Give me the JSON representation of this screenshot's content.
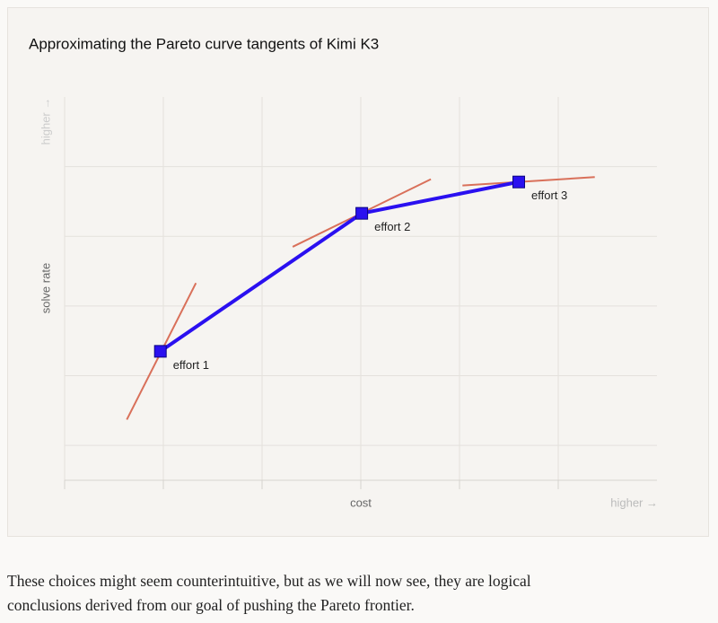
{
  "chart_data": {
    "type": "line",
    "title": "Approximating the Pareto curve tangents of Kimi K3",
    "x_label": "cost",
    "y_label": "solve rate",
    "x_annotation": "higher →",
    "y_annotation": "higher →",
    "xlim": [
      0,
      6
    ],
    "ylim": [
      0.5,
      6
    ],
    "xticks": [
      0,
      1,
      2,
      3,
      4,
      5
    ],
    "yticks": [
      1,
      2,
      3,
      4,
      5
    ],
    "grid": true,
    "series": [
      {
        "color": "#2a10f0",
        "x": [
          0.97,
          3.01,
          4.6
        ],
        "values": [
          2.35,
          4.33,
          4.78
        ],
        "point_labels": [
          "effort 1",
          "effort 2",
          "effort 3"
        ]
      }
    ],
    "tangents": [
      {
        "color": "#d9705a",
        "x": [
          0.63,
          1.33
        ],
        "values": [
          1.37,
          3.33
        ]
      },
      {
        "color": "#d9705a",
        "x": [
          2.31,
          3.71
        ],
        "values": [
          3.85,
          4.82
        ]
      },
      {
        "color": "#d9705a",
        "x": [
          4.03,
          5.37
        ],
        "values": [
          4.73,
          4.85
        ]
      }
    ]
  },
  "paragraph_lines": [
    "These choices might seem counterintuitive, but as we will now see, they are logical",
    "conclusions derived from our goal of pushing the Pareto frontier."
  ]
}
